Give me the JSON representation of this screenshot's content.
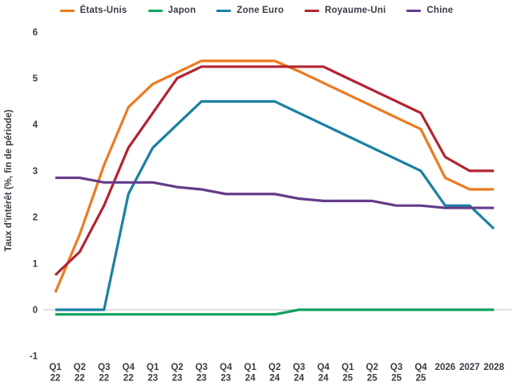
{
  "chart_data": {
    "type": "line",
    "title": "",
    "xlabel": "",
    "ylabel": "Taux d'intérêt (%, fin de période)",
    "ylim": [
      -1,
      6
    ],
    "yticks": [
      6,
      5,
      4,
      3,
      2,
      1,
      0,
      -1
    ],
    "grid": "zero-line-only",
    "legend_position": "top-center",
    "zero_line_color": "#C9C9CE",
    "text_color": "#3B3B47",
    "categories": [
      "Q1 22",
      "Q2 22",
      "Q3 22",
      "Q4 22",
      "Q1 23",
      "Q2 23",
      "Q3 23",
      "Q4 23",
      "Q1 24",
      "Q2 24",
      "Q3 24",
      "Q4 24",
      "Q1 25",
      "Q2 25",
      "Q3 25",
      "Q4 25",
      "2026",
      "2027",
      "2028"
    ],
    "categories_display": [
      [
        "Q1",
        "22"
      ],
      [
        "Q2",
        "22"
      ],
      [
        "Q3",
        "22"
      ],
      [
        "Q4",
        "22"
      ],
      [
        "Q1",
        "23"
      ],
      [
        "Q2",
        "23"
      ],
      [
        "Q3",
        "23"
      ],
      [
        "Q4",
        "23"
      ],
      [
        "Q1",
        "24"
      ],
      [
        "Q2",
        "24"
      ],
      [
        "Q3",
        "24"
      ],
      [
        "Q4",
        "24"
      ],
      [
        "Q1",
        "25"
      ],
      [
        "Q2",
        "25"
      ],
      [
        "Q3",
        "25"
      ],
      [
        "Q4",
        "25"
      ],
      [
        "2026"
      ],
      [
        "2027"
      ],
      [
        "2028"
      ]
    ],
    "series": [
      {
        "name": "États-Unis",
        "color": "#EB7B21",
        "values": [
          0.375,
          1.625,
          3.125,
          4.375,
          4.875,
          5.125,
          5.375,
          5.375,
          5.375,
          5.375,
          5.15,
          4.9,
          4.65,
          4.4,
          4.15,
          3.9,
          2.85,
          2.6,
          2.6
        ]
      },
      {
        "name": "Japon",
        "color": "#0FA45C",
        "values": [
          -0.1,
          -0.1,
          -0.1,
          -0.1,
          -0.1,
          -0.1,
          -0.1,
          -0.1,
          -0.1,
          -0.1,
          0,
          0,
          0,
          0,
          0,
          0,
          0,
          0,
          0
        ]
      },
      {
        "name": "Zone Euro",
        "color": "#1A80A2",
        "values": [
          0,
          0,
          0,
          2.5,
          3.5,
          4.0,
          4.5,
          4.5,
          4.5,
          4.5,
          4.25,
          4.0,
          3.75,
          3.5,
          3.25,
          3.0,
          2.25,
          2.25,
          1.75
        ]
      },
      {
        "name": "Royaume-Uni",
        "color": "#B22431",
        "values": [
          0.75,
          1.25,
          2.25,
          3.5,
          4.25,
          5.0,
          5.25,
          5.25,
          5.25,
          5.25,
          5.25,
          5.25,
          5.0,
          4.75,
          4.5,
          4.25,
          3.3,
          3.0,
          3.0
        ]
      },
      {
        "name": "Chine",
        "color": "#633C8B",
        "values": [
          2.85,
          2.85,
          2.75,
          2.75,
          2.75,
          2.65,
          2.6,
          2.5,
          2.5,
          2.5,
          2.4,
          2.35,
          2.35,
          2.35,
          2.25,
          2.25,
          2.2,
          2.2,
          2.2
        ]
      }
    ]
  }
}
